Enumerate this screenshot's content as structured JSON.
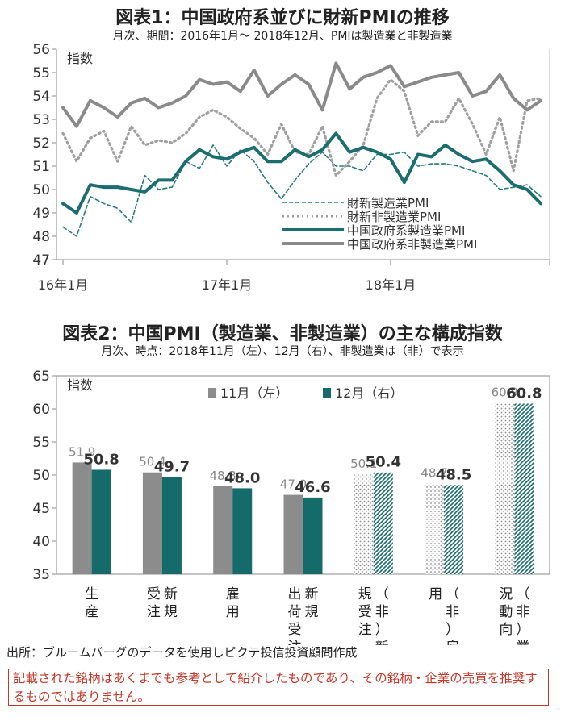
{
  "chart1": {
    "title": "図表1：中国政府系並びに財新PMIの推移",
    "subtitle": "月次、期間：2016年1月～ 2018年12月、PMIは製造業と非製造業",
    "ylabel": "指数",
    "x_tick_labels": [
      "16年1月",
      "17年1月",
      "18年1月"
    ]
  },
  "chart2": {
    "title": "図表2：中国PMI（製造業、非製造業）の主な構成指数",
    "subtitle": "月次、時点：2018年11月（左）、12月（右）、非製造業は（非）で表示",
    "ylabel": "指数"
  },
  "chart_data": [
    {
      "type": "line",
      "x": [
        "2016-01",
        "2016-02",
        "2016-03",
        "2016-04",
        "2016-05",
        "2016-06",
        "2016-07",
        "2016-08",
        "2016-09",
        "2016-10",
        "2016-11",
        "2016-12",
        "2017-01",
        "2017-02",
        "2017-03",
        "2017-04",
        "2017-05",
        "2017-06",
        "2017-07",
        "2017-08",
        "2017-09",
        "2017-10",
        "2017-11",
        "2017-12",
        "2018-01",
        "2018-02",
        "2018-03",
        "2018-04",
        "2018-05",
        "2018-06",
        "2018-07",
        "2018-08",
        "2018-09",
        "2018-10",
        "2018-11",
        "2018-12"
      ],
      "ylim": [
        47,
        56
      ],
      "yticks": [
        47,
        48,
        49,
        50,
        51,
        52,
        53,
        54,
        55,
        56
      ],
      "series": [
        {
          "name": "財新製造業PMI",
          "color": "#2a7a7a",
          "style": "dashed",
          "values": [
            48.4,
            48.0,
            49.7,
            49.4,
            49.2,
            48.6,
            50.6,
            50.0,
            50.1,
            51.2,
            50.9,
            51.9,
            51.0,
            51.7,
            51.2,
            50.3,
            49.6,
            50.4,
            51.1,
            51.6,
            51.0,
            51.0,
            50.8,
            51.5,
            51.5,
            51.6,
            51.0,
            51.1,
            51.1,
            51.0,
            50.8,
            50.6,
            50.0,
            50.1,
            50.2,
            49.7
          ]
        },
        {
          "name": "財新非製造業PMI",
          "color": "#a0a0a0",
          "style": "dotted",
          "values": [
            52.4,
            51.2,
            52.2,
            52.5,
            51.2,
            52.7,
            51.9,
            52.1,
            52.0,
            52.4,
            53.1,
            53.4,
            53.1,
            52.6,
            52.2,
            51.5,
            52.8,
            51.6,
            51.5,
            52.7,
            50.6,
            51.2,
            51.9,
            53.9,
            54.7,
            54.2,
            52.3,
            52.9,
            52.9,
            53.9,
            52.8,
            51.5,
            53.1,
            50.8,
            53.8,
            53.9
          ]
        },
        {
          "name": "中国政府系製造業PMI",
          "color": "#1c6e6e",
          "style": "solid",
          "values": [
            49.4,
            49.0,
            50.2,
            50.1,
            50.1,
            50.0,
            49.9,
            50.4,
            50.4,
            51.2,
            51.7,
            51.4,
            51.3,
            51.6,
            51.8,
            51.2,
            51.2,
            51.7,
            51.4,
            51.7,
            52.4,
            51.6,
            51.8,
            51.6,
            51.3,
            50.3,
            51.5,
            51.4,
            51.9,
            51.5,
            51.2,
            51.3,
            50.8,
            50.2,
            50.0,
            49.4
          ]
        },
        {
          "name": "中国政府系非製造業PMI",
          "color": "#8a8a8a",
          "style": "solid",
          "values": [
            53.5,
            52.7,
            53.8,
            53.5,
            53.1,
            53.7,
            53.9,
            53.5,
            53.7,
            54.0,
            54.7,
            54.5,
            54.6,
            54.2,
            55.1,
            54.0,
            54.5,
            54.9,
            54.5,
            53.4,
            55.4,
            54.3,
            54.8,
            55.0,
            55.3,
            54.4,
            54.6,
            54.8,
            54.9,
            55.0,
            54.0,
            54.2,
            54.9,
            53.9,
            53.4,
            53.8
          ]
        }
      ]
    },
    {
      "type": "bar",
      "categories": [
        "生産",
        "新規受注",
        "雇用",
        "新規出荷受注",
        "（非）新規受注",
        "（非）雇用",
        "（非）業況動向"
      ],
      "category_labels": [
        [
          [
            "生",
            "産"
          ]
        ],
        [
          [
            "新",
            "規"
          ],
          [
            "受",
            "注"
          ]
        ],
        [
          [
            "雇",
            "用"
          ]
        ],
        [
          [
            "新",
            "規"
          ],
          [
            "出",
            "荷",
            "受",
            "注"
          ]
        ],
        [
          [
            "（",
            "非",
            "）",
            "新"
          ],
          [
            "規",
            "受",
            "注"
          ]
        ],
        [
          [
            "（",
            "非",
            "）",
            "雇"
          ],
          [
            "用"
          ]
        ],
        [
          [
            "（",
            "非",
            "）",
            "業"
          ],
          [
            "況",
            "動",
            "向"
          ]
        ]
      ],
      "ylim": [
        35,
        65
      ],
      "yticks": [
        35,
        40,
        45,
        50,
        55,
        60,
        65
      ],
      "series": [
        {
          "name": "11月（左）",
          "color": "#8c8c8c",
          "values": [
            51.9,
            50.4,
            48.3,
            47.0,
            50.1,
            48.7,
            60.9
          ],
          "labels": [
            "51.9",
            "50.4",
            "48.3",
            "47.0",
            "50.1",
            "48.7",
            "60.9"
          ]
        },
        {
          "name": "12月（右）",
          "color": "#156a6a",
          "values": [
            50.8,
            49.7,
            48.0,
            46.6,
            50.4,
            48.5,
            60.8
          ],
          "labels": [
            "50.8",
            "49.7",
            "48.0",
            "46.6",
            "50.4",
            "48.5",
            "60.8"
          ]
        }
      ],
      "non_manufacturing_style": "hatched"
    }
  ],
  "footer": {
    "source": "出所：ブルームバーグのデータを使用しピクテ投信投資顧問作成",
    "disclaimer": "記載された銘柄はあくまでも参考として紹介したものであり、その銘柄・企業の売買を推奨するものではありません。"
  }
}
